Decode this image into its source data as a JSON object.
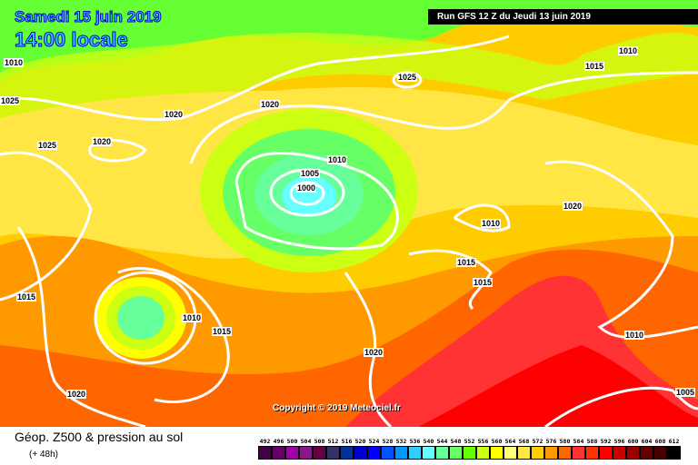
{
  "header": {
    "date": "Samedi 15 juin 2019",
    "time": "14:00 locale",
    "run": "Run GFS 12 Z du Jeudi 13 juin 2019"
  },
  "copyright": "Copyright © 2019 Meteociel.fr",
  "caption": {
    "title": "Géop. Z500 & pression au sol",
    "lead": "(+ 48h)"
  },
  "isobar_labels": [
    "1010",
    "1025",
    "1010",
    "1015",
    "1025",
    "1020",
    "1020",
    "1025",
    "1020",
    "1010",
    "1005",
    "1000",
    "1010",
    "1020",
    "1015",
    "1015",
    "1015",
    "1010",
    "1015",
    "1020",
    "1010",
    "1020",
    "1005"
  ],
  "legend": {
    "values": [
      "492",
      "496",
      "500",
      "504",
      "508",
      "512",
      "516",
      "520",
      "524",
      "528",
      "532",
      "536",
      "540",
      "544",
      "548",
      "552",
      "556",
      "560",
      "564",
      "568",
      "572",
      "576",
      "580",
      "584",
      "588",
      "592",
      "596",
      "600",
      "604",
      "608",
      "612"
    ],
    "colors": [
      "#440044",
      "#660066",
      "#a000a8",
      "#881888",
      "#660044",
      "#333366",
      "#003399",
      "#0000cc",
      "#0000ff",
      "#0055ff",
      "#0099ff",
      "#33ccff",
      "#66ffff",
      "#66ff99",
      "#66ff66",
      "#66ff00",
      "#ccff11",
      "#ffff00",
      "#ffff77",
      "#ffe644",
      "#ffcc00",
      "#ff9900",
      "#ff6600",
      "#ff3333",
      "#ff3300",
      "#ff0000",
      "#cc0000",
      "#990000",
      "#660000",
      "#440000",
      "#000000"
    ]
  }
}
